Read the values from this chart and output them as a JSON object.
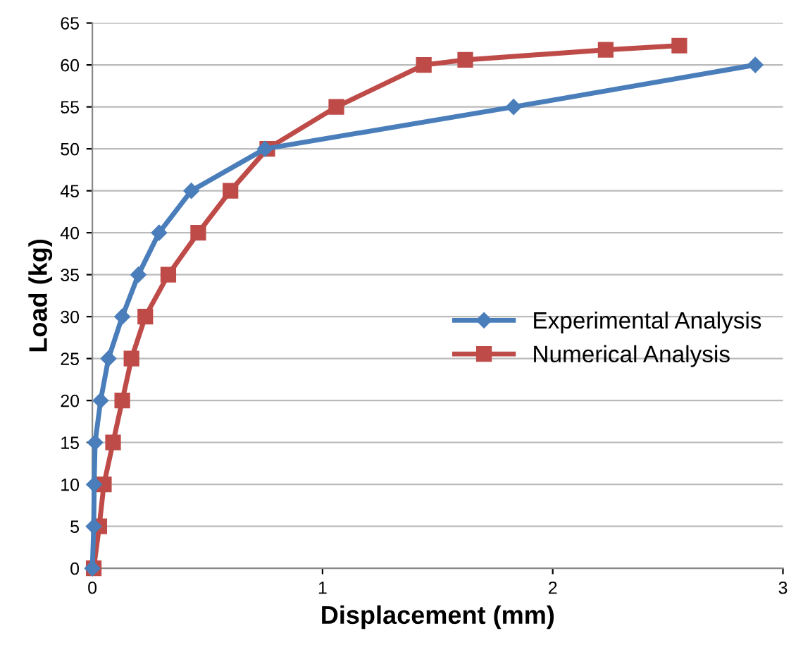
{
  "chart_data": {
    "type": "line",
    "xlabel": "Displacement (mm)",
    "ylabel": "Load (kg)",
    "xlim": [
      0,
      3
    ],
    "xticks": [
      0,
      1,
      2,
      3
    ],
    "ylim": [
      0,
      65
    ],
    "yticks": [
      0,
      5,
      10,
      15,
      20,
      25,
      30,
      35,
      40,
      45,
      50,
      55,
      60,
      65
    ],
    "grid": "y",
    "legend": "right",
    "line_style": "solid",
    "series": [
      {
        "name": "Experimental Analysis",
        "color": "#4a7ebb",
        "marker": "diamond",
        "x": [
          0,
          0.006,
          0.008,
          0.012,
          0.036,
          0.07,
          0.13,
          0.2,
          0.29,
          0.43,
          0.75,
          1.83,
          2.88
        ],
        "values": [
          0,
          5,
          10,
          15,
          20,
          25,
          30,
          35,
          40,
          45,
          50,
          55,
          60
        ]
      },
      {
        "name": "Numerical Analysis",
        "color": "#be4b48",
        "marker": "square",
        "x": [
          0.006,
          0.03,
          0.05,
          0.09,
          0.13,
          0.17,
          0.23,
          0.33,
          0.46,
          0.6,
          0.76,
          1.06,
          1.44,
          1.62,
          2.23,
          2.55
        ],
        "values": [
          0,
          5,
          10,
          15,
          20,
          25,
          30,
          35,
          40,
          45,
          50,
          55,
          60,
          60.6,
          61.8,
          62.3
        ]
      }
    ]
  }
}
